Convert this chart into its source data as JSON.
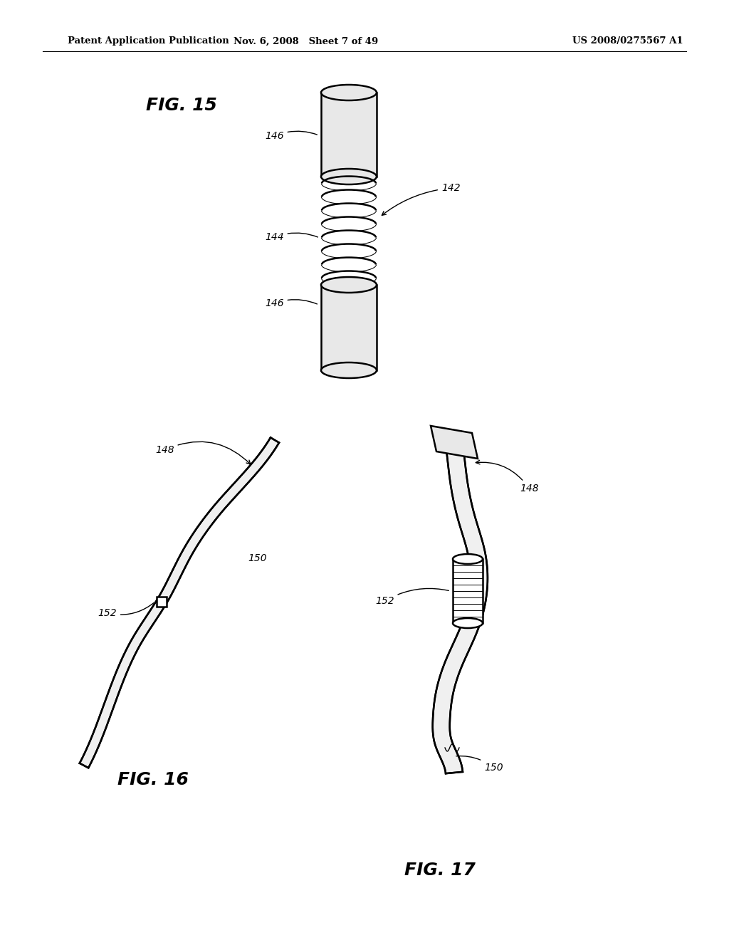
{
  "bg_color": "#ffffff",
  "header_left": "Patent Application Publication",
  "header_mid": "Nov. 6, 2008   Sheet 7 of 49",
  "header_right": "US 2008/0275567 A1",
  "fig15_label": "FIG. 15",
  "fig16_label": "FIG. 16",
  "fig17_label": "FIG. 17",
  "label_142": "142",
  "label_144": "144",
  "label_146a": "146",
  "label_146b": "146",
  "label_148a": "148",
  "label_148b": "148",
  "label_150a": "150",
  "label_150b": "150",
  "label_152a": "152",
  "label_152b": "152",
  "lw": 1.8,
  "lw_thin": 1.0
}
